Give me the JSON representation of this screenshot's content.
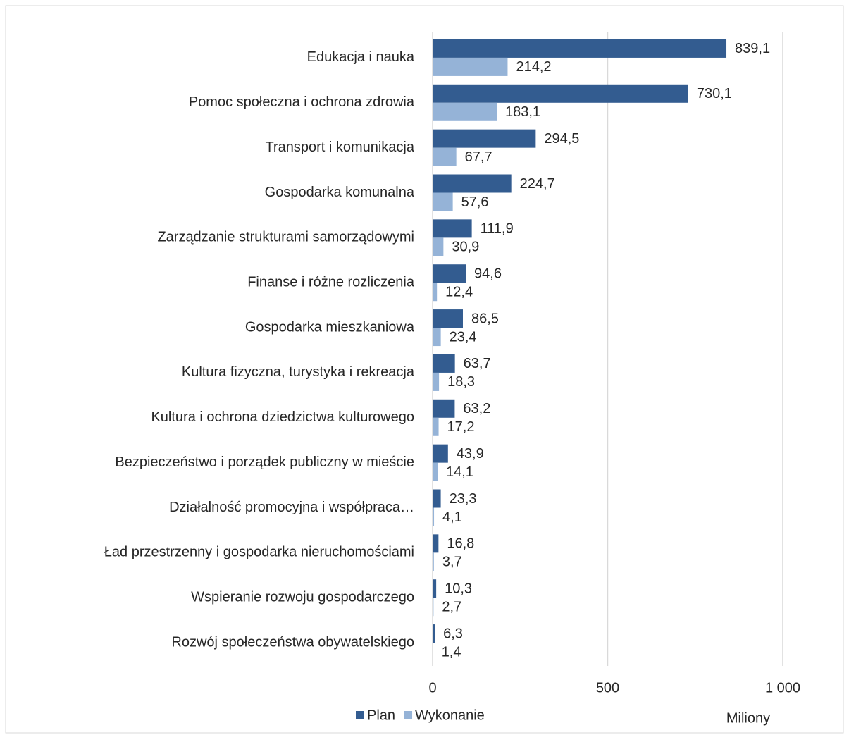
{
  "chart_data": {
    "type": "bar",
    "orientation": "horizontal",
    "categories": [
      "Edukacja i nauka",
      "Pomoc społeczna i ochrona zdrowia",
      "Transport i komunikacja",
      "Gospodarka komunalna",
      "Zarządzanie strukturami samorządowymi",
      "Finanse i różne rozliczenia",
      "Gospodarka mieszkaniowa",
      "Kultura fizyczna, turystyka i rekreacja",
      "Kultura i ochrona dziedzictwa kulturowego",
      "Bezpieczeństwo i porządek publiczny w mieście",
      "Działalność promocyjna i współpraca…",
      "Ład przestrzenny i gospodarka nieruchomościami",
      "Wspieranie rozwoju gospodarczego",
      "Rozwój społeczeństwa obywatelskiego"
    ],
    "series": [
      {
        "name": "Plan",
        "color": "#335c90",
        "values": [
          839.1,
          730.1,
          294.5,
          224.7,
          111.9,
          94.6,
          86.5,
          63.7,
          63.2,
          43.9,
          23.3,
          16.8,
          10.3,
          6.3
        ],
        "value_labels": [
          "839,1",
          "730,1",
          "294,5",
          "224,7",
          "111,9",
          "94,6",
          "86,5",
          "63,7",
          "63,2",
          "43,9",
          "23,3",
          "16,8",
          "10,3",
          "6,3"
        ]
      },
      {
        "name": "Wykonanie",
        "color": "#95b3d7",
        "values": [
          214.2,
          183.1,
          67.7,
          57.6,
          30.9,
          12.4,
          23.4,
          18.3,
          17.2,
          14.1,
          4.1,
          3.7,
          2.7,
          1.4
        ],
        "value_labels": [
          "214,2",
          "183,1",
          "67,7",
          "57,6",
          "30,9",
          "12,4",
          "23,4",
          "18,3",
          "17,2",
          "14,1",
          "4,1",
          "3,7",
          "2,7",
          "1,4"
        ]
      }
    ],
    "xlim": [
      0,
      1000
    ],
    "xticks": [
      0,
      500,
      {
        "value": 1000,
        "label": "1 000"
      }
    ],
    "x_axis_label": "Miliony",
    "grid": true,
    "legend": "bottom"
  }
}
